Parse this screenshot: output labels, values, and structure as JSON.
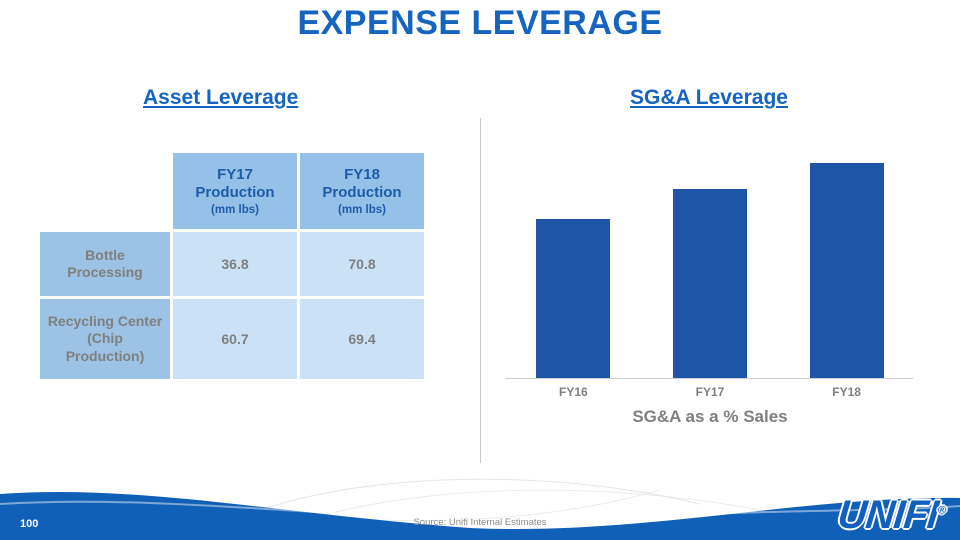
{
  "slide": {
    "title": "EXPENSE LEVERAGE",
    "page_number": "100",
    "source": "Source: Unifi Internal Estimates"
  },
  "asset_leverage": {
    "heading": "Asset Leverage",
    "table": {
      "columns": [
        {
          "title": "FY17 Production",
          "unit": "(mm lbs)"
        },
        {
          "title": "FY18 Production",
          "unit": "(mm lbs)"
        }
      ],
      "rows": [
        {
          "label": "Bottle Processing",
          "fy17": "36.8",
          "fy18": "70.8"
        },
        {
          "label": "Recycling Center (Chip Production)",
          "fy17": "60.7",
          "fy18": "69.4"
        }
      ]
    }
  },
  "sga_leverage": {
    "heading": "SG&A Leverage",
    "caption": "SG&A as a % Sales"
  },
  "chart_data": {
    "type": "bar",
    "categories": [
      "FY16",
      "FY17",
      "FY18"
    ],
    "values": [
      74,
      88,
      100
    ],
    "title": "SG&A as a % Sales",
    "xlabel": "",
    "ylabel": "",
    "ylim": [
      0,
      100
    ],
    "grid": false,
    "legend": "none",
    "bar_color": "#1E55A6"
  },
  "logo": {
    "text": "UNIFI",
    "reg": "®"
  },
  "colors": {
    "accent_blue": "#1565C0",
    "bar_blue": "#1E55A6",
    "header_cell": "#95C0E8",
    "label_cell": "#9CC3E5",
    "value_cell": "#CBE2F6",
    "gray_text": "#7F7F7F",
    "footer_blue": "#1160B8"
  }
}
